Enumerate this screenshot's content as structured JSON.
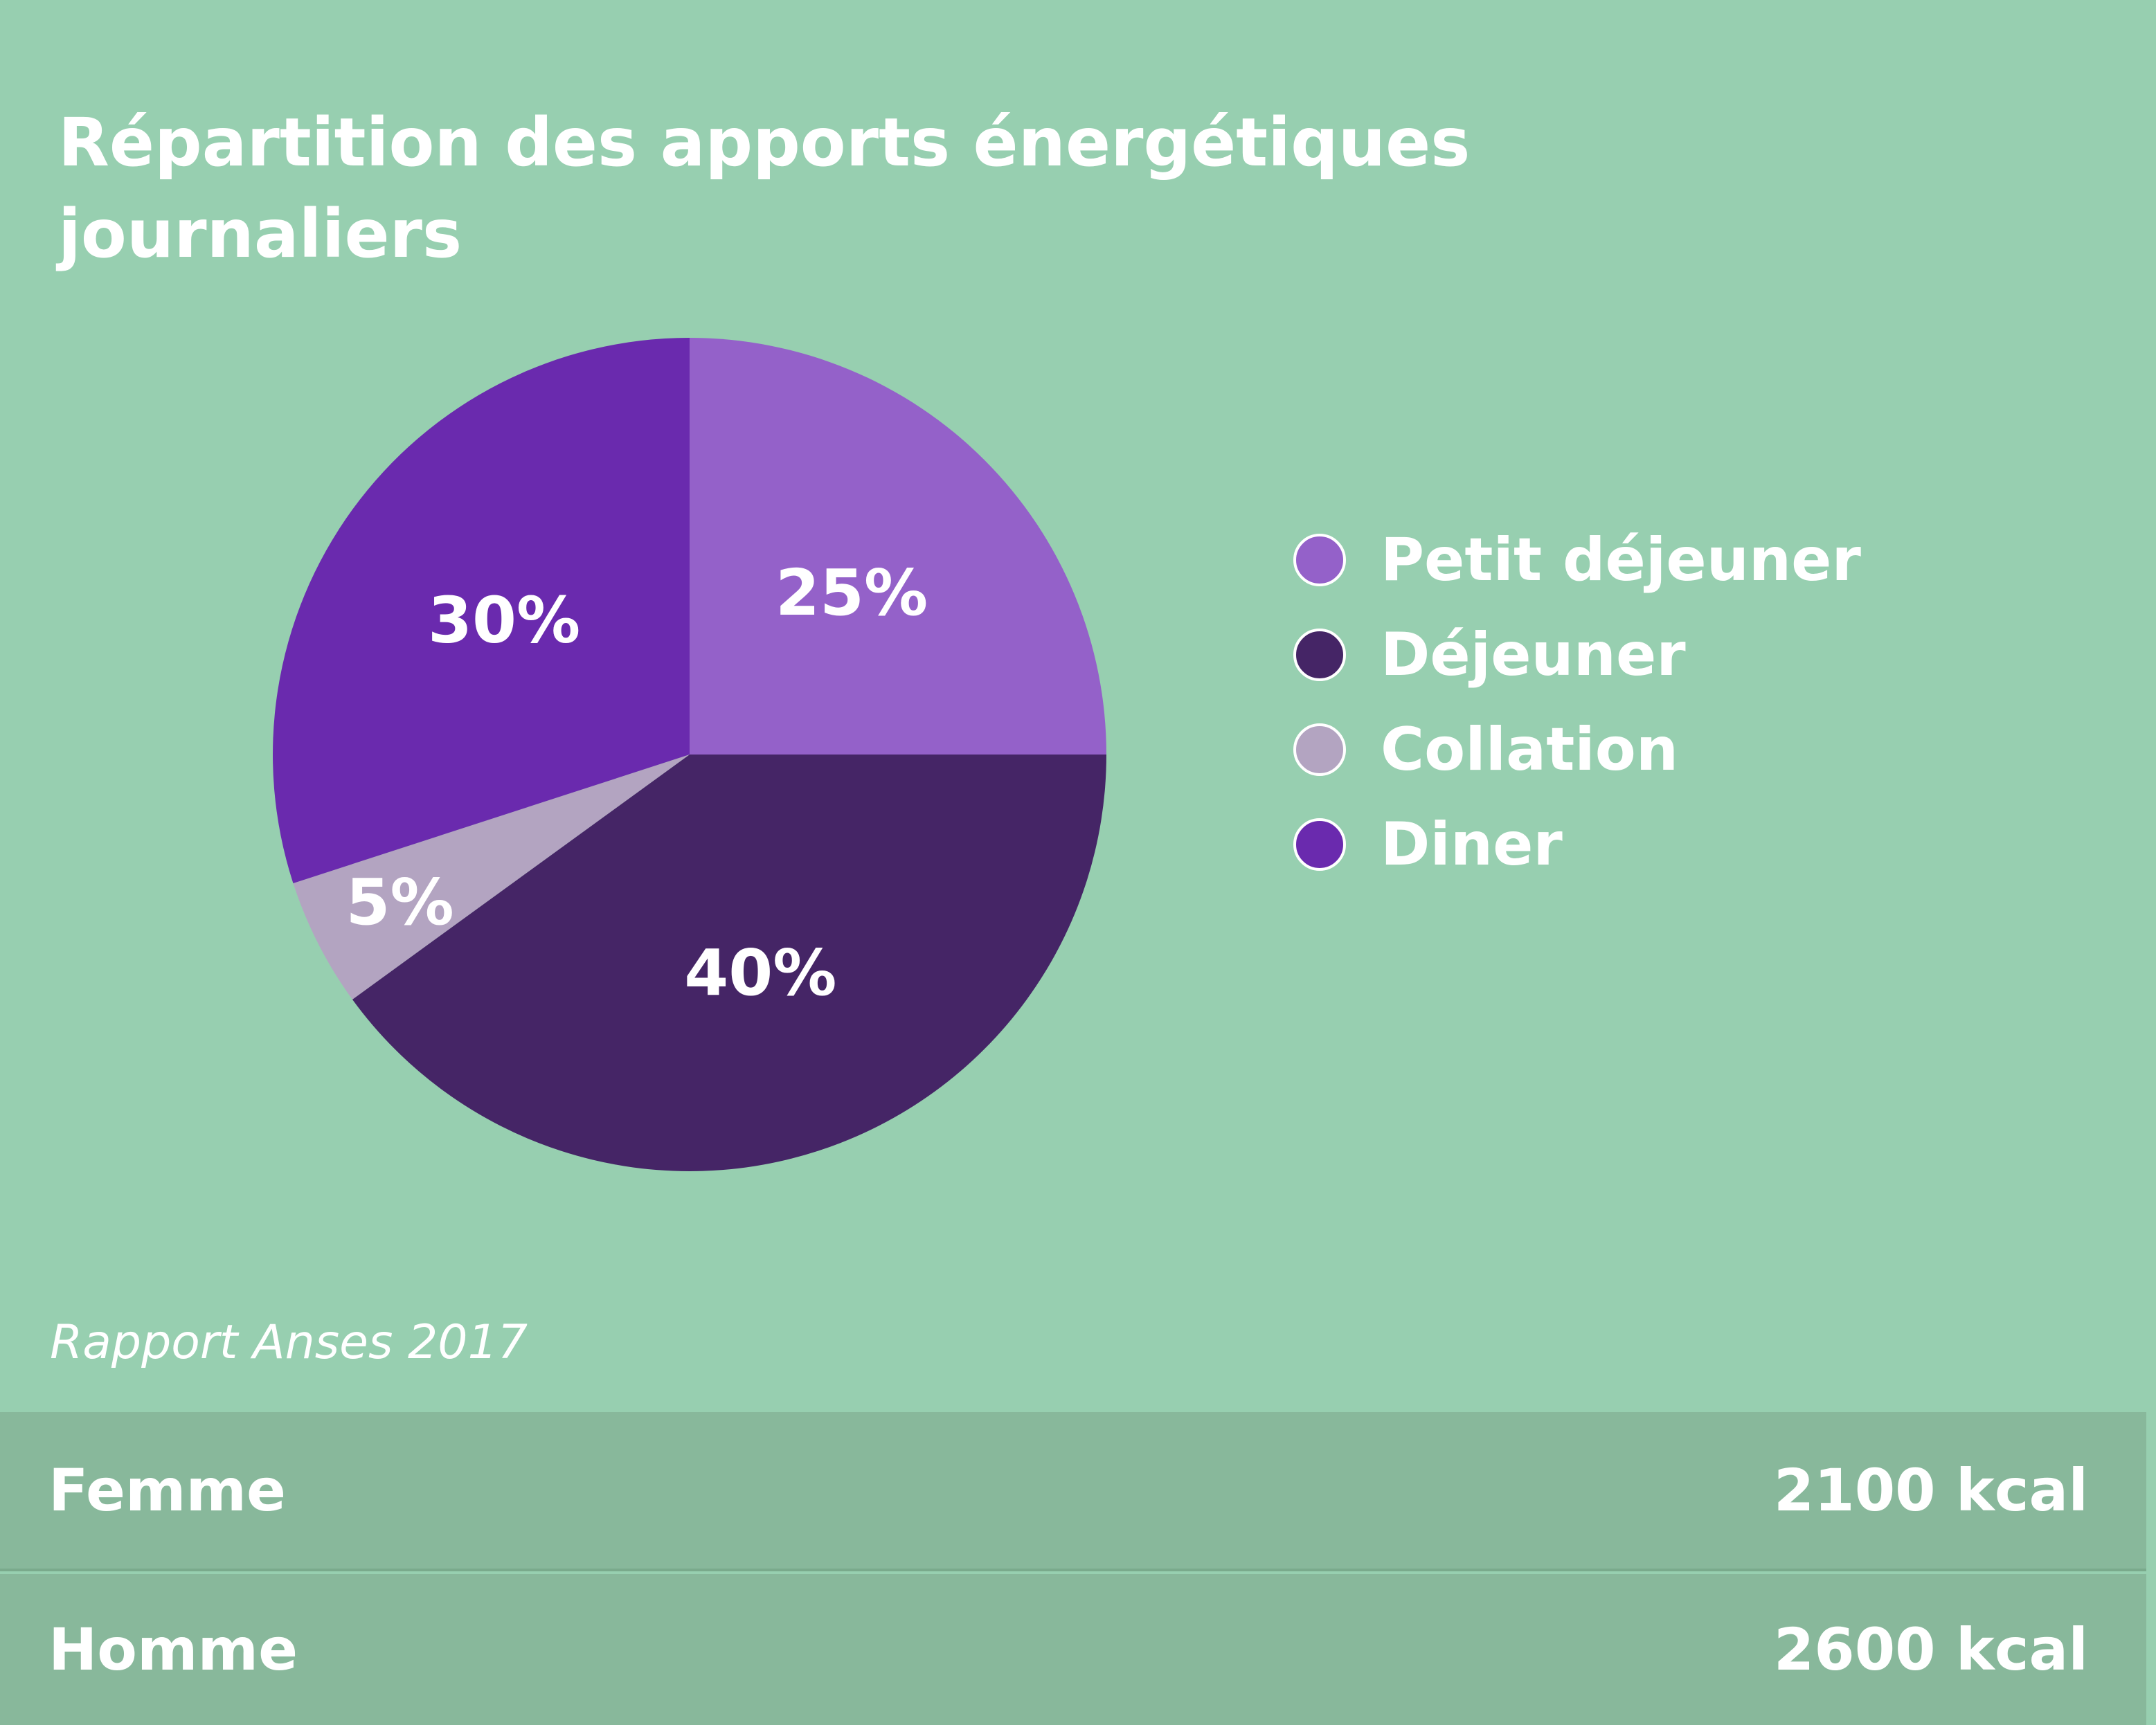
{
  "chart_data": {
    "type": "pie",
    "title": "Répartition des apports énergétiques journaliers",
    "slices": [
      {
        "label": "Petit déjeuner",
        "value": 25,
        "display": "25%",
        "color": "#9461c9"
      },
      {
        "label": "Déjeuner",
        "value": 40,
        "display": "40%",
        "color": "#452566"
      },
      {
        "label": "Collation",
        "value": 5,
        "display": "5%",
        "color": "#b3a4c1"
      },
      {
        "label": "Diner",
        "value": 30,
        "display": "30%",
        "color": "#6a2aae"
      }
    ],
    "start_angle": "top, clockwise",
    "legend_position": "right"
  },
  "source": "Rapport Anses 2017",
  "table": [
    {
      "label": "Femme",
      "value": "2100 kcal"
    },
    {
      "label": "Homme",
      "value": "2600 kcal"
    }
  ],
  "colors": {
    "background": "#97cfb0",
    "rows": "#88b89b"
  }
}
